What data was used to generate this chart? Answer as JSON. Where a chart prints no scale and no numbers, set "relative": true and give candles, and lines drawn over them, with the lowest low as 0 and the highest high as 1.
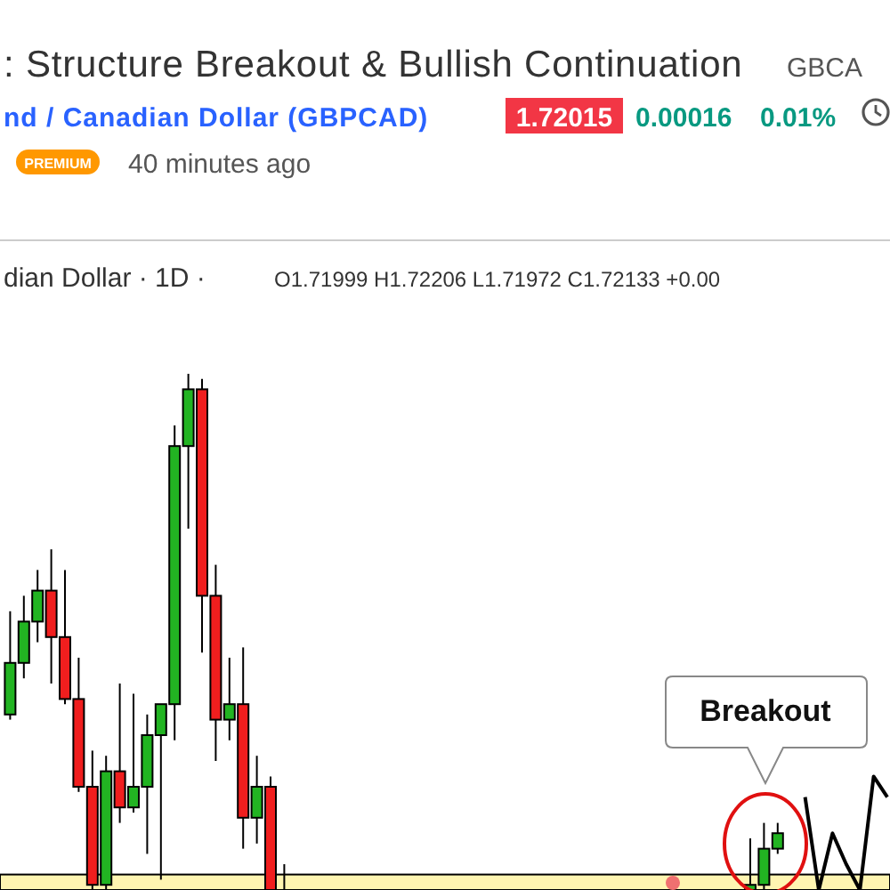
{
  "chart_data": {
    "type": "candlestick",
    "relative": true,
    "tick_labels": false,
    "title": ": Structure Breakout & Bullish Continuation",
    "subtitle": "nd / Canadian Dollar (GBPCAD)",
    "annotations": [
      "GBCA",
      "1.72015",
      "0.00016",
      "0.01%",
      "PREMIUM",
      "40 minutes ago",
      "dian Dollar · 1D ·",
      "O1.71999 H1.72206 L1.71972 C1.72133 +0.00",
      "Breakout"
    ],
    "categories": [
      null,
      null,
      null,
      null,
      null,
      null,
      null,
      null,
      null,
      null,
      null,
      null,
      null,
      null,
      null,
      null,
      null,
      null,
      null,
      null,
      null,
      null,
      null,
      null,
      null,
      null,
      null,
      null,
      null,
      null,
      null,
      null,
      null,
      null,
      null,
      null,
      null,
      null,
      null,
      null,
      null,
      null,
      null,
      null,
      null,
      null,
      null,
      null,
      null,
      null,
      null,
      null,
      null,
      null,
      null,
      null,
      null,
      null,
      null,
      null,
      null,
      null,
      null,
      null,
      null
    ],
    "ohlc": [
      [
        0.34,
        0.54,
        0.33,
        0.44
      ],
      [
        0.44,
        0.57,
        0.41,
        0.52
      ],
      [
        0.52,
        0.62,
        0.48,
        0.58
      ],
      [
        0.58,
        0.66,
        0.4,
        0.49
      ],
      [
        0.49,
        0.62,
        0.36,
        0.37
      ],
      [
        0.37,
        0.45,
        0.19,
        0.2
      ],
      [
        0.2,
        0.27,
        0,
        0.01
      ],
      [
        0.01,
        0.26,
        0,
        0.23
      ],
      [
        0.23,
        0.4,
        0.13,
        0.16
      ],
      [
        0.16,
        0.38,
        0.15,
        0.2
      ],
      [
        0.2,
        0.34,
        0.07,
        0.3
      ],
      [
        0.3,
        0.36,
        0.02,
        0.36
      ],
      [
        0.36,
        0.9,
        0.29,
        0.86
      ],
      [
        0.86,
        1,
        0.7,
        0.97
      ],
      [
        0.97,
        0.99,
        0.46,
        0.57
      ],
      [
        0.57,
        0.63,
        0.25,
        0.33
      ],
      [
        0.33,
        0.45,
        0.29,
        0.36
      ],
      [
        0.36,
        0.47,
        0.08,
        0.14
      ],
      [
        0.14,
        0.26,
        0.09,
        0.2
      ],
      [
        0.2,
        0.22,
        0,
        0
      ],
      [
        0,
        0.05,
        0,
        0
      ],
      null,
      null,
      null,
      null,
      null,
      null,
      null,
      null,
      null,
      null,
      null,
      null,
      null,
      null,
      null,
      null,
      null,
      null,
      null,
      null,
      null,
      null,
      null,
      null,
      null,
      null,
      null,
      null,
      null,
      null,
      null,
      null,
      null,
      [
        0,
        0.1,
        0,
        0.01
      ],
      [
        0.01,
        0.13,
        0,
        0.08
      ],
      [
        0.08,
        0.13,
        0.07,
        0.11
      ],
      null,
      null,
      null,
      null,
      null,
      null,
      null,
      null
    ],
    "colors": [
      "#22b422",
      "#22b422",
      "#22b422",
      "#f01e1e",
      "#f01e1e",
      "#f01e1e",
      "#f01e1e",
      "#22b422",
      "#f01e1e",
      "#22b422",
      "#22b422",
      "#22b422",
      "#22b422",
      "#22b422",
      "#f01e1e",
      "#f01e1e",
      "#22b422",
      "#f01e1e",
      "#22b422",
      "#f01e1e",
      "#f01e1e",
      null,
      null,
      null,
      null,
      null,
      null,
      null,
      null,
      null,
      null,
      null,
      null,
      null,
      null,
      null,
      null,
      null,
      null,
      null,
      null,
      null,
      null,
      null,
      null,
      null,
      null,
      null,
      null,
      null,
      null,
      null,
      null,
      null,
      "#22b422",
      "#22b422",
      "#22b422",
      null,
      null,
      null,
      null,
      null,
      null,
      null,
      null
    ],
    "series": [
      {
        "type": "line",
        "color": "#000000",
        "values": [
          null,
          null,
          null,
          null,
          null,
          null,
          null,
          null,
          null,
          null,
          null,
          null,
          null,
          null,
          null,
          null,
          null,
          null,
          null,
          null,
          null,
          null,
          null,
          null,
          null,
          null,
          null,
          null,
          null,
          null,
          null,
          null,
          null,
          null,
          null,
          null,
          null,
          null,
          null,
          null,
          null,
          null,
          null,
          null,
          null,
          null,
          null,
          null,
          null,
          null,
          null,
          null,
          null,
          null,
          null,
          null,
          null,
          null,
          0.18,
          0,
          0.11,
          0.05,
          0,
          0.22,
          0.18
        ]
      }
    ],
    "bands": [
      {
        "axis": "y",
        "from": 0,
        "to": 0.03,
        "color": "#fff5b1"
      }
    ]
  }
}
